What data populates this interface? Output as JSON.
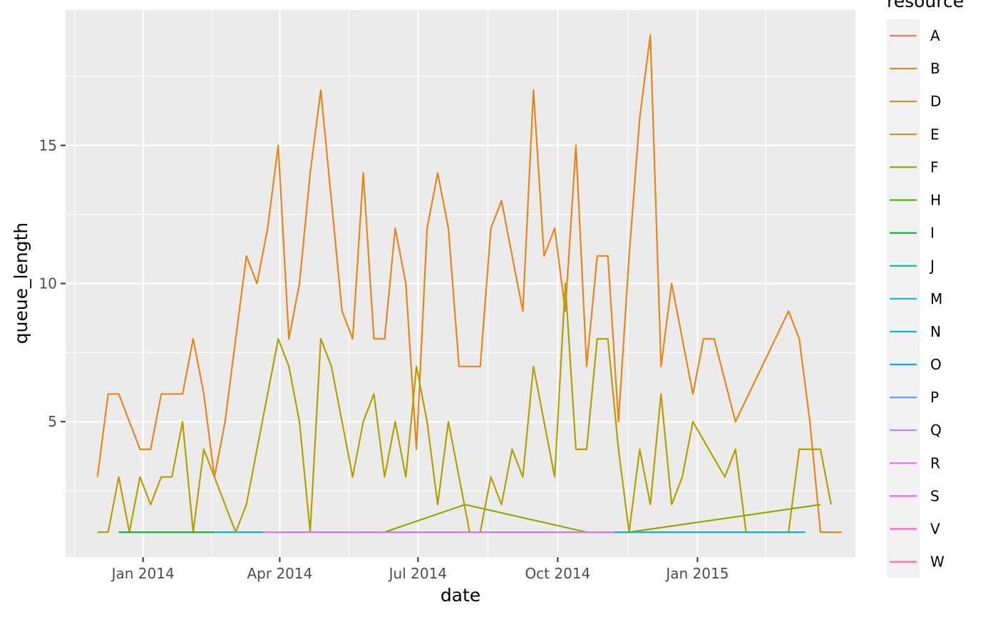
{
  "chart_data": {
    "type": "line",
    "title": "",
    "xlabel": "date",
    "ylabel": "queue_length",
    "xlim": [
      "2013-11-11",
      "2015-04-15"
    ],
    "ylim": [
      0.1,
      19.9
    ],
    "grid": true,
    "legend_title": "resource",
    "legend_position": "right",
    "x_ticks": [
      {
        "date": "2014-01-01",
        "label": "Jan 2014"
      },
      {
        "date": "2014-04-01",
        "label": "Apr 2014"
      },
      {
        "date": "2014-07-01",
        "label": "Jul 2014"
      },
      {
        "date": "2014-10-01",
        "label": "Oct 2014"
      },
      {
        "date": "2015-01-01",
        "label": "Jan 2015"
      }
    ],
    "y_ticks": [
      5,
      10,
      15
    ],
    "series": [
      {
        "name": "A",
        "color": "#F8766D",
        "points": []
      },
      {
        "name": "B",
        "color": "#E7861B",
        "points": [
          [
            "2013-12-02",
            3
          ],
          [
            "2013-12-09",
            6
          ],
          [
            "2013-12-16",
            6
          ],
          [
            "2013-12-30",
            4
          ],
          [
            "2014-01-06",
            4
          ],
          [
            "2014-01-13",
            6
          ],
          [
            "2014-01-20",
            6
          ],
          [
            "2014-01-27",
            6
          ],
          [
            "2014-02-03",
            8
          ],
          [
            "2014-02-10",
            6
          ],
          [
            "2014-02-17",
            3
          ],
          [
            "2014-02-24",
            5
          ],
          [
            "2014-03-03",
            8
          ],
          [
            "2014-03-10",
            11
          ],
          [
            "2014-03-17",
            10
          ],
          [
            "2014-03-24",
            12
          ],
          [
            "2014-03-31",
            15
          ],
          [
            "2014-04-07",
            8
          ],
          [
            "2014-04-14",
            10
          ],
          [
            "2014-04-21",
            14
          ],
          [
            "2014-04-28",
            17
          ],
          [
            "2014-05-05",
            13
          ],
          [
            "2014-05-12",
            9
          ],
          [
            "2014-05-19",
            8
          ],
          [
            "2014-05-26",
            14
          ],
          [
            "2014-06-02",
            8
          ],
          [
            "2014-06-09",
            8
          ],
          [
            "2014-06-16",
            12
          ],
          [
            "2014-06-23",
            10
          ],
          [
            "2014-06-30",
            4
          ],
          [
            "2014-07-07",
            12
          ],
          [
            "2014-07-14",
            14
          ],
          [
            "2014-07-21",
            12
          ],
          [
            "2014-07-28",
            7
          ],
          [
            "2014-08-04",
            7
          ],
          [
            "2014-08-11",
            7
          ],
          [
            "2014-08-18",
            12
          ],
          [
            "2014-08-25",
            13
          ],
          [
            "2014-09-01",
            11
          ],
          [
            "2014-09-08",
            9
          ],
          [
            "2014-09-15",
            17
          ],
          [
            "2014-09-22",
            11
          ],
          [
            "2014-09-29",
            12
          ],
          [
            "2014-10-06",
            9
          ],
          [
            "2014-10-13",
            15
          ],
          [
            "2014-10-20",
            7
          ],
          [
            "2014-10-27",
            11
          ],
          [
            "2014-11-03",
            11
          ],
          [
            "2014-11-10",
            5
          ],
          [
            "2014-11-17",
            11
          ],
          [
            "2014-11-24",
            16
          ],
          [
            "2014-12-01",
            19
          ],
          [
            "2014-12-08",
            7
          ],
          [
            "2014-12-15",
            10
          ],
          [
            "2014-12-29",
            6
          ],
          [
            "2015-01-05",
            8
          ],
          [
            "2015-01-12",
            8
          ],
          [
            "2015-01-26",
            5
          ],
          [
            "2015-03-02",
            9
          ],
          [
            "2015-03-09",
            8
          ],
          [
            "2015-03-16",
            5
          ],
          [
            "2015-03-23",
            1
          ],
          [
            "2015-04-06",
            1
          ]
        ]
      },
      {
        "name": "D",
        "color": "#D39200",
        "points": []
      },
      {
        "name": "E",
        "color": "#B79F00",
        "points": [
          [
            "2013-12-02",
            1
          ],
          [
            "2013-12-09",
            1
          ],
          [
            "2013-12-16",
            3
          ],
          [
            "2013-12-23",
            1
          ],
          [
            "2013-12-30",
            3
          ],
          [
            "2014-01-06",
            2
          ],
          [
            "2014-01-13",
            3
          ],
          [
            "2014-01-20",
            3
          ],
          [
            "2014-01-27",
            5
          ],
          [
            "2014-02-03",
            1
          ],
          [
            "2014-02-10",
            4
          ],
          [
            "2014-03-03",
            1
          ],
          [
            "2014-03-10",
            2
          ],
          [
            "2014-03-31",
            8
          ],
          [
            "2014-04-07",
            7
          ],
          [
            "2014-04-14",
            5
          ],
          [
            "2014-04-21",
            1
          ],
          [
            "2014-04-28",
            8
          ],
          [
            "2014-05-05",
            7
          ],
          [
            "2014-05-19",
            3
          ],
          [
            "2014-05-26",
            5
          ],
          [
            "2014-06-02",
            6
          ],
          [
            "2014-06-09",
            3
          ],
          [
            "2014-06-16",
            5
          ],
          [
            "2014-06-23",
            3
          ],
          [
            "2014-06-30",
            7
          ],
          [
            "2014-07-07",
            5
          ],
          [
            "2014-07-14",
            2
          ],
          [
            "2014-07-21",
            5
          ],
          [
            "2014-08-04",
            1
          ],
          [
            "2014-08-11",
            1
          ],
          [
            "2014-08-18",
            3
          ],
          [
            "2014-08-25",
            2
          ],
          [
            "2014-09-01",
            4
          ],
          [
            "2014-09-08",
            3
          ],
          [
            "2014-09-15",
            7
          ],
          [
            "2014-09-29",
            3
          ],
          [
            "2014-10-06",
            10
          ],
          [
            "2014-10-13",
            4
          ],
          [
            "2014-10-20",
            4
          ],
          [
            "2014-10-27",
            8
          ],
          [
            "2014-11-03",
            8
          ],
          [
            "2014-11-10",
            4
          ],
          [
            "2014-11-17",
            1
          ],
          [
            "2014-11-24",
            4
          ],
          [
            "2014-12-01",
            2
          ],
          [
            "2014-12-08",
            6
          ],
          [
            "2014-12-15",
            2
          ],
          [
            "2014-12-22",
            3
          ],
          [
            "2014-12-29",
            5
          ],
          [
            "2015-01-19",
            3
          ],
          [
            "2015-01-26",
            4
          ],
          [
            "2015-02-02",
            1
          ],
          [
            "2015-02-23",
            1
          ],
          [
            "2015-03-02",
            1
          ],
          [
            "2015-03-09",
            4
          ],
          [
            "2015-03-23",
            4
          ],
          [
            "2015-03-30",
            2
          ]
        ]
      },
      {
        "name": "F",
        "color": "#8EAB00",
        "points": [
          [
            "2014-06-09",
            1
          ],
          [
            "2014-08-01",
            2
          ],
          [
            "2014-10-20",
            1
          ],
          [
            "2014-11-17",
            1
          ],
          [
            "2015-03-23",
            2
          ]
        ]
      },
      {
        "name": "H",
        "color": "#53B400",
        "points": []
      },
      {
        "name": "I",
        "color": "#00BA38",
        "points": [
          [
            "2013-12-16",
            1
          ],
          [
            "2014-02-17",
            1
          ]
        ]
      },
      {
        "name": "J",
        "color": "#00C094",
        "points": []
      },
      {
        "name": "M",
        "color": "#00BFC4",
        "points": [
          [
            "2014-02-17",
            1
          ],
          [
            "2014-03-21",
            1
          ]
        ]
      },
      {
        "name": "N",
        "color": "#00B9E3",
        "points": [
          [
            "2014-10-27",
            1
          ],
          [
            "2015-03-13",
            1
          ]
        ]
      },
      {
        "name": "O",
        "color": "#00ADFA",
        "points": []
      },
      {
        "name": "P",
        "color": "#619CFF",
        "points": []
      },
      {
        "name": "Q",
        "color": "#AE87FF",
        "points": []
      },
      {
        "name": "R",
        "color": "#DB72FB",
        "points": [
          [
            "2014-03-21",
            1
          ],
          [
            "2014-11-07",
            1
          ]
        ]
      },
      {
        "name": "S",
        "color": "#F564E3",
        "points": []
      },
      {
        "name": "V",
        "color": "#FF61C3",
        "points": []
      },
      {
        "name": "W",
        "color": "#FF689F",
        "points": []
      }
    ]
  }
}
